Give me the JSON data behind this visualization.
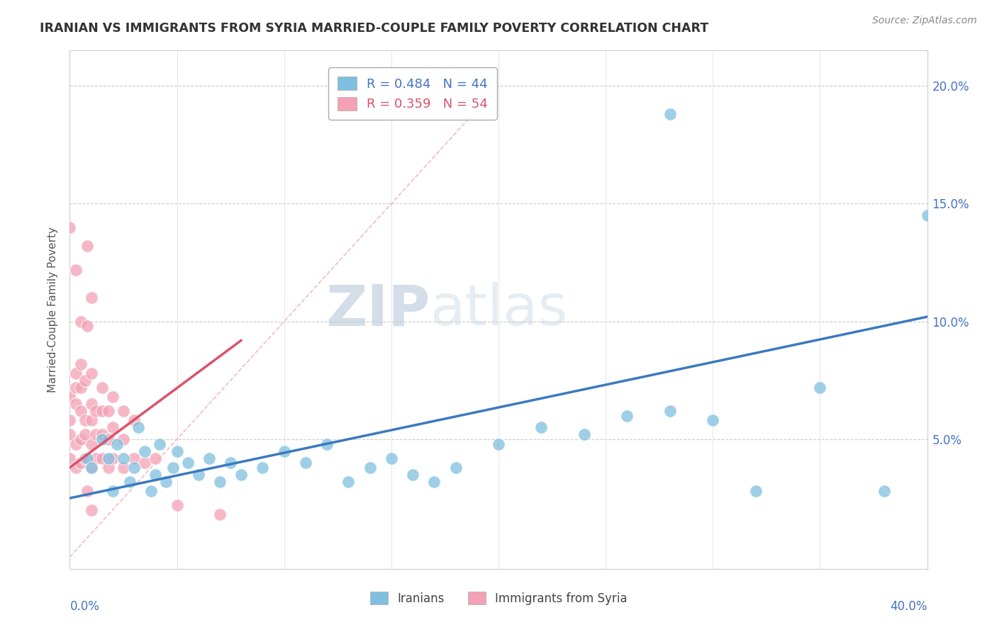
{
  "title": "IRANIAN VS IMMIGRANTS FROM SYRIA MARRIED-COUPLE FAMILY POVERTY CORRELATION CHART",
  "source": "Source: ZipAtlas.com",
  "ylabel": "Married-Couple Family Poverty",
  "yticks_labels": [
    "",
    "5.0%",
    "10.0%",
    "15.0%",
    "20.0%"
  ],
  "ytick_vals": [
    0.0,
    0.05,
    0.1,
    0.15,
    0.2
  ],
  "xrange": [
    0.0,
    0.4
  ],
  "yrange": [
    -0.005,
    0.215
  ],
  "color_iranian": "#7fbfdf",
  "color_syria": "#f4a0b5",
  "color_iranian_line": "#3a7abf",
  "color_syria_line": "#d9536a",
  "color_refline": "#f0b0b8",
  "watermark_color": "#c8d8e8",
  "iranian_points": [
    [
      0.008,
      0.042
    ],
    [
      0.01,
      0.038
    ],
    [
      0.015,
      0.05
    ],
    [
      0.018,
      0.042
    ],
    [
      0.02,
      0.028
    ],
    [
      0.022,
      0.048
    ],
    [
      0.025,
      0.042
    ],
    [
      0.028,
      0.032
    ],
    [
      0.03,
      0.038
    ],
    [
      0.032,
      0.055
    ],
    [
      0.035,
      0.045
    ],
    [
      0.038,
      0.028
    ],
    [
      0.04,
      0.035
    ],
    [
      0.042,
      0.048
    ],
    [
      0.045,
      0.032
    ],
    [
      0.048,
      0.038
    ],
    [
      0.05,
      0.045
    ],
    [
      0.055,
      0.04
    ],
    [
      0.06,
      0.035
    ],
    [
      0.065,
      0.042
    ],
    [
      0.07,
      0.032
    ],
    [
      0.075,
      0.04
    ],
    [
      0.08,
      0.035
    ],
    [
      0.09,
      0.038
    ],
    [
      0.1,
      0.045
    ],
    [
      0.11,
      0.04
    ],
    [
      0.12,
      0.048
    ],
    [
      0.13,
      0.032
    ],
    [
      0.14,
      0.038
    ],
    [
      0.15,
      0.042
    ],
    [
      0.16,
      0.035
    ],
    [
      0.17,
      0.032
    ],
    [
      0.18,
      0.038
    ],
    [
      0.2,
      0.048
    ],
    [
      0.22,
      0.055
    ],
    [
      0.24,
      0.052
    ],
    [
      0.26,
      0.06
    ],
    [
      0.28,
      0.062
    ],
    [
      0.3,
      0.058
    ],
    [
      0.32,
      0.028
    ],
    [
      0.35,
      0.072
    ],
    [
      0.38,
      0.028
    ],
    [
      0.4,
      0.145
    ],
    [
      0.28,
      0.188
    ]
  ],
  "syria_points": [
    [
      0.0,
      0.042
    ],
    [
      0.0,
      0.052
    ],
    [
      0.0,
      0.058
    ],
    [
      0.0,
      0.068
    ],
    [
      0.003,
      0.038
    ],
    [
      0.003,
      0.048
    ],
    [
      0.003,
      0.065
    ],
    [
      0.003,
      0.078
    ],
    [
      0.003,
      0.072
    ],
    [
      0.005,
      0.04
    ],
    [
      0.005,
      0.05
    ],
    [
      0.005,
      0.062
    ],
    [
      0.005,
      0.072
    ],
    [
      0.005,
      0.1
    ],
    [
      0.005,
      0.082
    ],
    [
      0.007,
      0.042
    ],
    [
      0.007,
      0.052
    ],
    [
      0.007,
      0.058
    ],
    [
      0.007,
      0.075
    ],
    [
      0.008,
      0.098
    ],
    [
      0.008,
      0.132
    ],
    [
      0.01,
      0.038
    ],
    [
      0.01,
      0.048
    ],
    [
      0.01,
      0.058
    ],
    [
      0.01,
      0.065
    ],
    [
      0.01,
      0.078
    ],
    [
      0.01,
      0.11
    ],
    [
      0.012,
      0.042
    ],
    [
      0.012,
      0.052
    ],
    [
      0.012,
      0.062
    ],
    [
      0.015,
      0.042
    ],
    [
      0.015,
      0.052
    ],
    [
      0.015,
      0.062
    ],
    [
      0.015,
      0.072
    ],
    [
      0.018,
      0.038
    ],
    [
      0.018,
      0.05
    ],
    [
      0.018,
      0.062
    ],
    [
      0.02,
      0.042
    ],
    [
      0.02,
      0.055
    ],
    [
      0.02,
      0.068
    ],
    [
      0.025,
      0.038
    ],
    [
      0.025,
      0.05
    ],
    [
      0.025,
      0.062
    ],
    [
      0.03,
      0.042
    ],
    [
      0.03,
      0.058
    ],
    [
      0.035,
      0.04
    ],
    [
      0.04,
      0.042
    ],
    [
      0.05,
      0.022
    ],
    [
      0.07,
      0.018
    ],
    [
      0.0,
      0.14
    ],
    [
      0.003,
      0.122
    ],
    [
      0.008,
      0.028
    ],
    [
      0.01,
      0.02
    ]
  ],
  "iranian_line_x": [
    0.0,
    0.4
  ],
  "iranian_line_y": [
    0.025,
    0.102
  ],
  "syria_line_x": [
    0.0,
    0.08
  ],
  "syria_line_y": [
    0.038,
    0.092
  ],
  "refline_x": [
    0.0,
    0.2
  ],
  "refline_y": [
    0.0,
    0.2
  ]
}
